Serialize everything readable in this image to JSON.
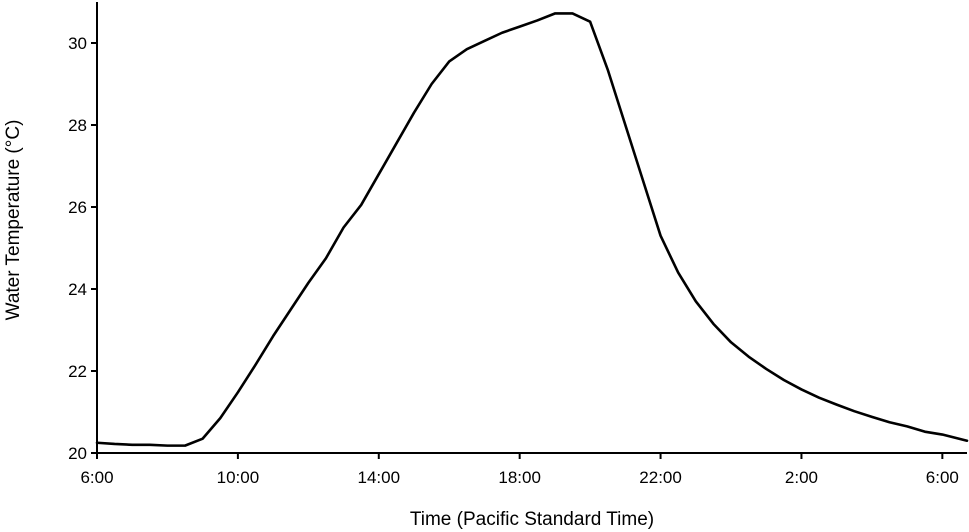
{
  "chart_data": {
    "type": "line",
    "title": "",
    "xlabel": "Time (Pacific Standard Time)",
    "ylabel": "Water Temperature (°C)",
    "x_unit": "hour of day (continuing past midnight)",
    "xlim": [
      6,
      30.7
    ],
    "ylim": [
      20,
      31
    ],
    "x_ticks": [
      {
        "value": 6,
        "label": "6:00"
      },
      {
        "value": 10,
        "label": "10:00"
      },
      {
        "value": 14,
        "label": "14:00"
      },
      {
        "value": 18,
        "label": "18:00"
      },
      {
        "value": 22,
        "label": "22:00"
      },
      {
        "value": 26,
        "label": "2:00"
      },
      {
        "value": 30,
        "label": "6:00"
      }
    ],
    "y_ticks": [
      {
        "value": 20,
        "label": "20"
      },
      {
        "value": 22,
        "label": "22"
      },
      {
        "value": 24,
        "label": "24"
      },
      {
        "value": 26,
        "label": "26"
      },
      {
        "value": 28,
        "label": "28"
      },
      {
        "value": 30,
        "label": "30"
      }
    ],
    "grid": false,
    "legend": "none",
    "colors": {
      "line": "#000000",
      "axis": "#000000"
    },
    "series": [
      {
        "x": [
          6.0,
          6.5,
          7.0,
          7.5,
          8.0,
          8.5,
          9.0,
          9.5,
          10.0,
          10.5,
          11.0,
          11.5,
          12.0,
          12.5,
          13.0,
          13.5,
          14.0,
          14.5,
          15.0,
          15.5,
          16.0,
          16.5,
          17.0,
          17.5,
          18.0,
          18.5,
          19.0,
          19.5,
          20.0,
          20.5,
          21.0,
          21.5,
          22.0,
          22.5,
          23.0,
          23.5,
          24.0,
          24.5,
          25.0,
          25.5,
          26.0,
          26.5,
          27.0,
          27.5,
          28.0,
          28.5,
          29.0,
          29.5,
          30.0,
          30.7
        ],
        "values": [
          20.25,
          20.22,
          20.2,
          20.2,
          20.18,
          20.18,
          20.35,
          20.85,
          21.48,
          22.15,
          22.85,
          23.5,
          24.15,
          24.75,
          25.5,
          26.05,
          26.8,
          27.55,
          28.3,
          29.0,
          29.55,
          29.85,
          30.05,
          30.25,
          30.4,
          30.55,
          30.72,
          30.72,
          30.52,
          29.35,
          28.0,
          26.65,
          25.3,
          24.4,
          23.7,
          23.15,
          22.7,
          22.35,
          22.05,
          21.78,
          21.55,
          21.35,
          21.18,
          21.02,
          20.88,
          20.75,
          20.65,
          20.52,
          20.45,
          20.3
        ]
      }
    ]
  }
}
